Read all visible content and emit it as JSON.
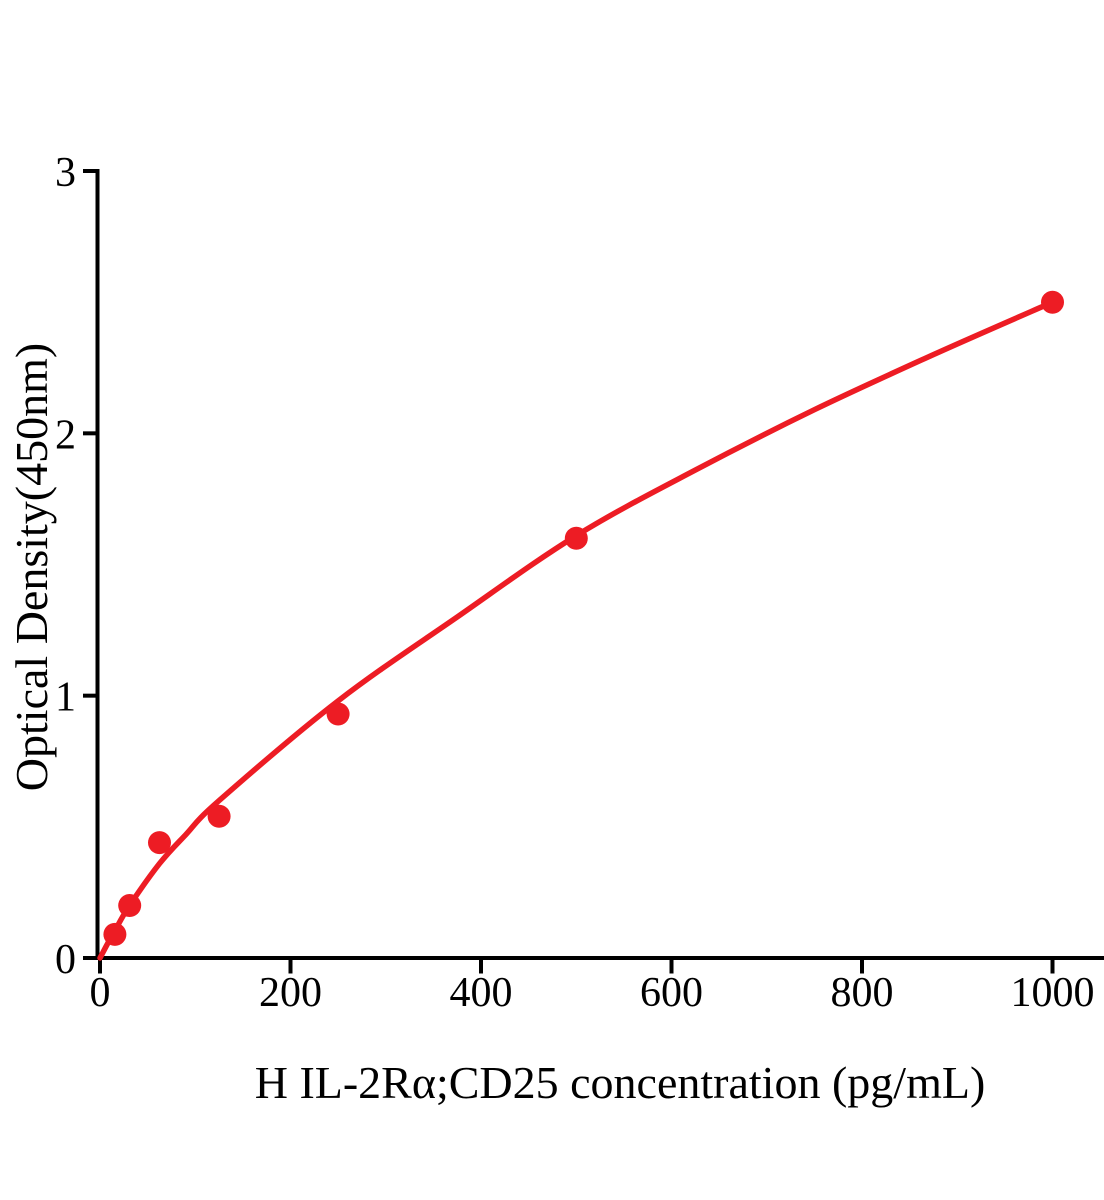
{
  "chart_data": {
    "type": "scatter",
    "title": "",
    "xlabel": "H IL-2Rα;CD25 concentration (pg/mL)",
    "ylabel": "Optical Density(450nm)",
    "xlim": [
      0,
      1055
    ],
    "ylim": [
      0,
      3
    ],
    "x_ticks": [
      0,
      200,
      400,
      600,
      800,
      1000
    ],
    "x_tick_labels": [
      "0",
      "200",
      "400",
      "600",
      "800",
      "1000"
    ],
    "y_ticks": [
      0,
      1,
      2,
      3
    ],
    "y_tick_labels": [
      "0",
      "1",
      "2",
      "3"
    ],
    "grid": false,
    "legend": null,
    "colors": {
      "accent_red": "#ED1C24",
      "axis_black": "#000000",
      "background": "#FFFFFF"
    },
    "series": [
      {
        "name": "standard-points",
        "type": "scatter",
        "marker": "circle",
        "color": "#ED1C24",
        "x": [
          15.6,
          31.2,
          62.5,
          125,
          250,
          500,
          1000
        ],
        "y": [
          0.09,
          0.2,
          0.44,
          0.54,
          0.93,
          1.6,
          2.5
        ]
      },
      {
        "name": "fitted-curve",
        "type": "line",
        "color": "#ED1C24",
        "x": [
          0,
          8,
          15,
          31,
          62.5,
          90,
          125,
          250,
          375,
          500,
          625,
          750,
          875,
          1000
        ],
        "y": [
          0,
          0.055,
          0.1,
          0.2,
          0.36,
          0.47,
          0.6,
          0.98,
          1.3,
          1.61,
          1.86,
          2.09,
          2.3,
          2.5
        ]
      }
    ]
  }
}
